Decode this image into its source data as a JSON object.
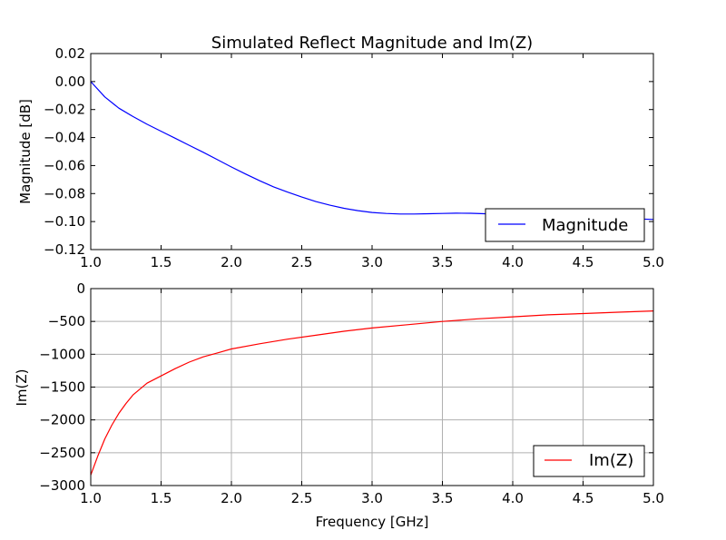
{
  "chart_data": [
    {
      "type": "line",
      "title": "Simulated Reflect Magnitude and Im(Z)",
      "xlabel": "",
      "ylabel": "Magnitude [dB]",
      "xlim": [
        1.0,
        5.0
      ],
      "ylim": [
        -0.12,
        0.02
      ],
      "xticks": [
        "1.0",
        "1.5",
        "2.0",
        "2.5",
        "3.0",
        "3.5",
        "4.0",
        "4.5",
        "5.0"
      ],
      "yticks": [
        "0.02",
        "0.00",
        "−0.02",
        "−0.04",
        "−0.06",
        "−0.08",
        "−0.10",
        "−0.12"
      ],
      "grid": false,
      "legend": "lower-right",
      "series": [
        {
          "name": "Magnitude",
          "color": "#0000ff",
          "x": [
            1.0,
            1.1,
            1.2,
            1.3,
            1.4,
            1.5,
            1.6,
            1.7,
            1.8,
            1.9,
            2.0,
            2.1,
            2.2,
            2.3,
            2.4,
            2.5,
            2.6,
            2.7,
            2.8,
            2.9,
            3.0,
            3.1,
            3.2,
            3.3,
            3.4,
            3.5,
            3.6,
            3.7,
            3.8,
            3.9,
            4.0,
            4.2,
            4.4,
            4.6,
            4.8,
            5.0
          ],
          "y": [
            0.0,
            -0.011,
            -0.019,
            -0.025,
            -0.0305,
            -0.0355,
            -0.0405,
            -0.0455,
            -0.0505,
            -0.0558,
            -0.061,
            -0.066,
            -0.0708,
            -0.0752,
            -0.079,
            -0.0825,
            -0.0857,
            -0.0883,
            -0.0905,
            -0.0922,
            -0.0935,
            -0.0942,
            -0.0946,
            -0.0946,
            -0.0944,
            -0.0942,
            -0.094,
            -0.0941,
            -0.0944,
            -0.0947,
            -0.0951,
            -0.0958,
            -0.0965,
            -0.0972,
            -0.0978,
            -0.0985
          ]
        }
      ]
    },
    {
      "type": "line",
      "title": "",
      "xlabel": "Frequency [GHz]",
      "ylabel": "Im(Z)",
      "xlim": [
        1.0,
        5.0
      ],
      "ylim": [
        -3000,
        0
      ],
      "xticks": [
        "1.0",
        "1.5",
        "2.0",
        "2.5",
        "3.0",
        "3.5",
        "4.0",
        "4.5",
        "5.0"
      ],
      "yticks": [
        "0",
        "−500",
        "−1000",
        "−1500",
        "−2000",
        "−2500",
        "−3000"
      ],
      "grid": true,
      "legend": "lower-right",
      "series": [
        {
          "name": "Im(Z)",
          "color": "#ff0000",
          "x": [
            1.0,
            1.05,
            1.1,
            1.15,
            1.2,
            1.25,
            1.3,
            1.4,
            1.5,
            1.6,
            1.7,
            1.8,
            1.9,
            2.0,
            2.2,
            2.4,
            2.6,
            2.8,
            3.0,
            3.25,
            3.5,
            3.75,
            4.0,
            4.25,
            4.5,
            4.75,
            5.0
          ],
          "y": [
            -2840,
            -2550,
            -2290,
            -2080,
            -1900,
            -1750,
            -1620,
            -1440,
            -1330,
            -1220,
            -1120,
            -1040,
            -980,
            -920,
            -840,
            -770,
            -710,
            -650,
            -600,
            -550,
            -500,
            -460,
            -430,
            -400,
            -380,
            -360,
            -340
          ]
        }
      ]
    }
  ]
}
